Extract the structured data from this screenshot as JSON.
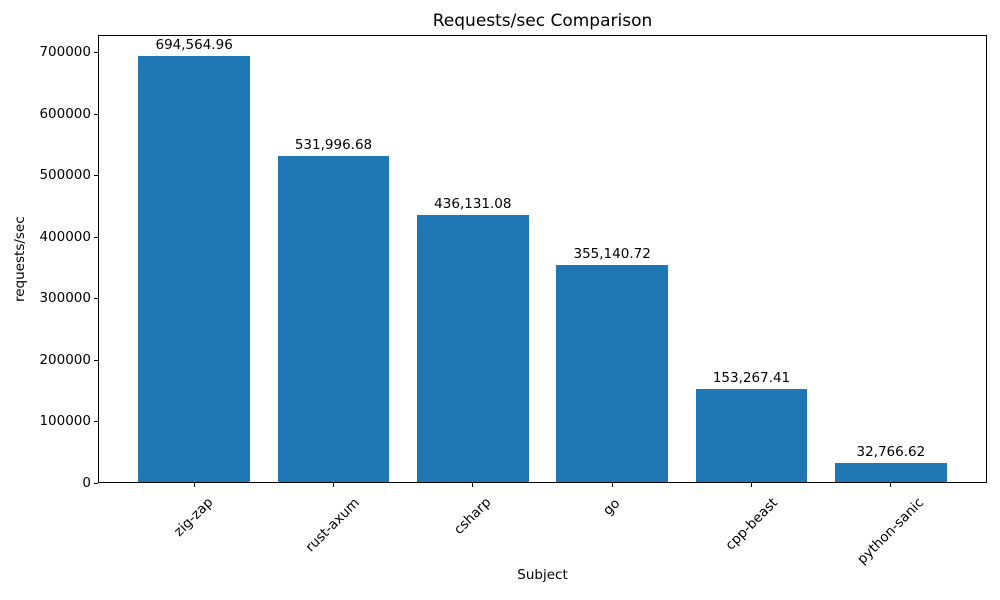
{
  "chart_data": {
    "type": "bar",
    "title": "Requests/sec Comparison",
    "xlabel": "Subject",
    "ylabel": "requests/sec",
    "categories": [
      "zig-zap",
      "rust-axum",
      "csharp",
      "go",
      "cpp-beast",
      "python-sanic"
    ],
    "values": [
      694564.96,
      531996.68,
      436131.08,
      355140.72,
      153267.41,
      32766.62
    ],
    "value_labels": [
      "694,564.96",
      "531,996.68",
      "436,131.08",
      "355,140.72",
      "153,267.41",
      "32,766.62"
    ],
    "yticks": [
      0,
      100000,
      200000,
      300000,
      400000,
      500000,
      600000,
      700000
    ],
    "ytick_labels": [
      "0",
      "100000",
      "200000",
      "300000",
      "400000",
      "500000",
      "600000",
      "700000"
    ],
    "ylim": [
      0,
      729293
    ],
    "x_tick_rotation": 45,
    "grid": false,
    "legend_position": "none",
    "bar_width_fraction": 0.8,
    "bar_color": "#1f77b4",
    "axis_color": "#000000",
    "background_color": "#ffffff"
  }
}
